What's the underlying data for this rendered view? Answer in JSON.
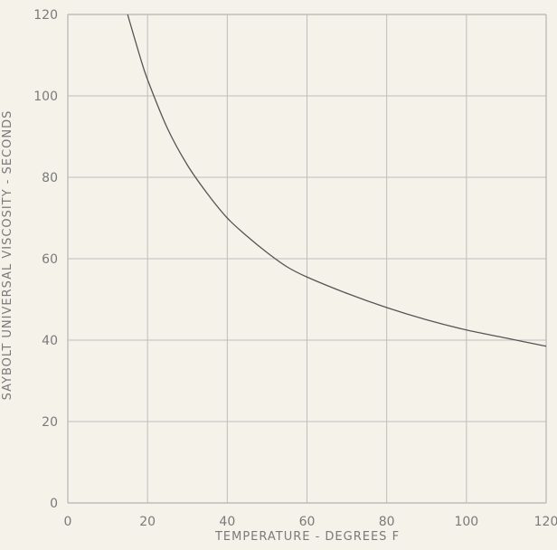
{
  "chart_data": {
    "type": "line",
    "title": "",
    "xlabel": "TEMPERATURE - DEGREES F",
    "ylabel": "SAYBOLT UNIVERSAL VISCOSITY - SECONDS",
    "xlim": [
      0,
      120
    ],
    "ylim": [
      0,
      120
    ],
    "grid": true,
    "x_ticks": [
      "0",
      "20",
      "40",
      "60",
      "80",
      "100",
      "120"
    ],
    "y_ticks": [
      "0",
      "20",
      "40",
      "60",
      "80",
      "100",
      "120"
    ],
    "series": [
      {
        "name": "",
        "x": [
          15,
          18,
          20,
          25,
          30,
          35,
          40,
          45,
          50,
          55,
          60,
          70,
          80,
          90,
          100,
          110,
          120
        ],
        "y": [
          120,
          110,
          104,
          92,
          83,
          76,
          70,
          65.5,
          61.5,
          58,
          55.5,
          51.5,
          48,
          45,
          42.5,
          40.5,
          38.5
        ]
      }
    ],
    "colors": {
      "background": "#f5f2ea",
      "grid": "#bdbdbd",
      "curve": "#555555",
      "text": "#7a7a7a"
    }
  }
}
